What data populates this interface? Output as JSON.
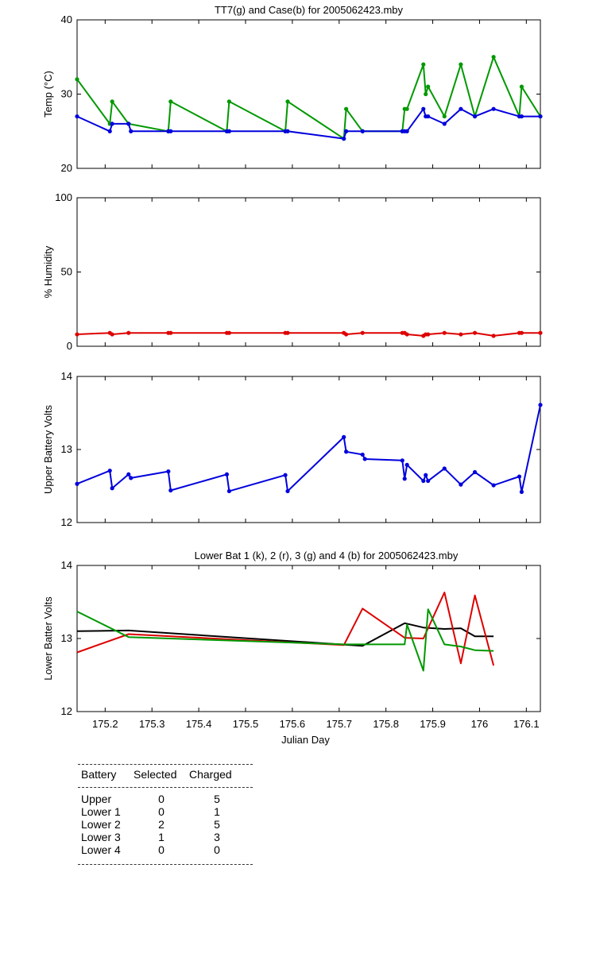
{
  "chart_data": [
    {
      "type": "line",
      "title": "TT7(g) and Case(b) for 2005062423.mby",
      "xlabel": "",
      "ylabel": "Temp  (°C)",
      "xlim": [
        175.14,
        176.13
      ],
      "ylim": [
        20,
        40
      ],
      "yticks": [
        "20",
        "30",
        "40"
      ],
      "grid": false,
      "series": [
        {
          "color": "#009900",
          "x": [
            175.14,
            175.21,
            175.215,
            175.25,
            175.335,
            175.34,
            175.46,
            175.465,
            175.585,
            175.59,
            175.71,
            175.715,
            175.75,
            175.835,
            175.84,
            175.845,
            175.88,
            175.885,
            175.89,
            175.925,
            175.96,
            175.99,
            176.03,
            176.085,
            176.09,
            176.13
          ],
          "y": [
            32,
            26,
            29,
            26,
            25,
            29,
            25,
            29,
            25,
            29,
            24,
            28,
            25,
            25,
            28,
            28,
            34,
            30,
            31,
            27,
            34,
            27,
            35,
            27,
            31,
            27
          ]
        },
        {
          "color": "#0000dd",
          "x": [
            175.14,
            175.21,
            175.215,
            175.25,
            175.255,
            175.335,
            175.34,
            175.46,
            175.465,
            175.585,
            175.59,
            175.71,
            175.715,
            175.75,
            175.835,
            175.84,
            175.845,
            175.88,
            175.885,
            175.89,
            175.925,
            175.96,
            175.99,
            176.03,
            176.085,
            176.09,
            176.13
          ],
          "y": [
            27,
            25,
            26,
            26,
            25,
            25,
            25,
            25,
            25,
            25,
            25,
            24,
            25,
            25,
            25,
            25,
            25,
            28,
            27,
            27,
            26,
            28,
            27,
            28,
            27,
            27,
            27
          ]
        }
      ]
    },
    {
      "type": "line",
      "title": "",
      "xlabel": "",
      "ylabel": "% Humidity",
      "xlim": [
        175.14,
        176.13
      ],
      "ylim": [
        0,
        100
      ],
      "yticks": [
        "0",
        "50",
        "100"
      ],
      "grid": false,
      "series": [
        {
          "color": "#dd0000",
          "x": [
            175.14,
            175.21,
            175.215,
            175.25,
            175.335,
            175.34,
            175.46,
            175.465,
            175.585,
            175.59,
            175.71,
            175.715,
            175.75,
            175.835,
            175.84,
            175.845,
            175.88,
            175.885,
            175.89,
            175.925,
            175.96,
            175.99,
            176.03,
            176.085,
            176.09,
            176.13
          ],
          "y": [
            8,
            9,
            8,
            9,
            9,
            9,
            9,
            9,
            9,
            9,
            9,
            8,
            9,
            9,
            9,
            8,
            7,
            8,
            8,
            9,
            8,
            9,
            7,
            9,
            9,
            9
          ]
        }
      ]
    },
    {
      "type": "line",
      "title": "",
      "xlabel": "",
      "ylabel": "Upper Battery Volts",
      "xlim": [
        175.14,
        176.13
      ],
      "ylim": [
        12,
        14
      ],
      "yticks": [
        "12",
        "13",
        "14"
      ],
      "grid": false,
      "series": [
        {
          "color": "#0000dd",
          "x": [
            175.14,
            175.21,
            175.215,
            175.25,
            175.255,
            175.335,
            175.34,
            175.46,
            175.465,
            175.585,
            175.59,
            175.71,
            175.715,
            175.75,
            175.755,
            175.835,
            175.84,
            175.845,
            175.88,
            175.885,
            175.89,
            175.925,
            175.96,
            175.99,
            176.03,
            176.085,
            176.09,
            176.13
          ],
          "y": [
            12.53,
            12.71,
            12.47,
            12.66,
            12.61,
            12.7,
            12.44,
            12.66,
            12.43,
            12.65,
            12.43,
            13.17,
            12.97,
            12.93,
            12.87,
            12.85,
            12.6,
            12.79,
            12.57,
            12.65,
            12.57,
            12.74,
            12.52,
            12.69,
            12.51,
            12.63,
            12.42,
            13.61
          ]
        }
      ]
    },
    {
      "type": "line",
      "title": "Lower Bat 1 (k), 2 (r), 3 (g) and 4 (b) for 2005062423.mby",
      "xlabel": "Julian Day",
      "ylabel": "Lower Batter Volts",
      "xlim": [
        175.14,
        176.13
      ],
      "ylim": [
        12,
        14
      ],
      "yticks": [
        "12",
        "13",
        "14"
      ],
      "xticks": [
        175.2,
        175.3,
        175.4,
        175.5,
        175.6,
        175.7,
        175.8,
        175.9,
        176.0,
        176.1
      ],
      "xticklabels": [
        "175.2",
        "175.3",
        "175.4",
        "175.5",
        "175.6",
        "175.7",
        "175.8",
        "175.9",
        "176",
        "176.1"
      ],
      "grid": false,
      "series": [
        {
          "color": "#000000",
          "x": [
            175.14,
            175.25,
            175.75,
            175.84,
            175.88,
            175.925,
            175.96,
            175.99,
            176.03
          ],
          "y": [
            13.1,
            13.11,
            12.9,
            13.21,
            13.15,
            13.13,
            13.14,
            13.03,
            13.03
          ]
        },
        {
          "color": "#dd0000",
          "x": [
            175.14,
            175.25,
            175.71,
            175.75,
            175.84,
            175.88,
            175.925,
            175.96,
            175.99,
            176.03
          ],
          "y": [
            12.81,
            13.06,
            12.91,
            13.41,
            13.01,
            13.0,
            13.63,
            12.66,
            13.59,
            12.63
          ]
        },
        {
          "color": "#009900",
          "x": [
            175.14,
            175.25,
            175.71,
            175.84,
            175.845,
            175.88,
            175.89,
            175.925,
            175.96,
            175.99,
            176.03
          ],
          "y": [
            13.37,
            13.02,
            12.92,
            12.92,
            13.19,
            12.56,
            13.4,
            12.92,
            12.89,
            12.84,
            12.83
          ]
        }
      ]
    }
  ],
  "battery_table": {
    "headers": [
      "Battery",
      "Selected",
      "Charged"
    ],
    "rows": [
      [
        "Upper",
        "0",
        "5"
      ],
      [
        "Lower 1",
        "0",
        "1"
      ],
      [
        "Lower 2",
        "2",
        "5"
      ],
      [
        "Lower 3",
        "1",
        "3"
      ],
      [
        "Lower 4",
        "0",
        "0"
      ]
    ]
  }
}
